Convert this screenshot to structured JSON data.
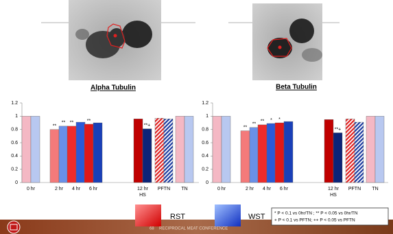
{
  "chart_data": [
    {
      "type": "bar",
      "title": "Alpha Tubulin",
      "categories": [
        "0 hr",
        "2 hr",
        "4 hr",
        "6 hr",
        "12 hr",
        "PFTN",
        "TN"
      ],
      "x_sublabels": [
        null,
        null,
        null,
        null,
        "HS",
        null,
        null
      ],
      "hatched": [
        false,
        false,
        false,
        false,
        false,
        true,
        false
      ],
      "ylim": [
        0,
        1.2
      ],
      "yticks": [
        0,
        0.2,
        0.4,
        0.6,
        0.8,
        1,
        1.2
      ],
      "series": [
        {
          "name": "RST",
          "color": "#e02020",
          "colors": [
            "#f4b8c4",
            "#f47a7a",
            "#ee2b2b",
            "#e01818",
            "#c00000",
            "#e02020",
            "#f4b8c4"
          ],
          "values": [
            1,
            0.8,
            0.85,
            0.88,
            0.96,
            0.97,
            1
          ],
          "markers": [
            null,
            "**",
            "**",
            "**",
            null,
            null,
            null
          ]
        },
        {
          "name": "WST",
          "color": "#1a48c8",
          "colors": [
            "#b8c8f0",
            "#6a90e8",
            "#2a5ad8",
            "#1a40b8",
            "#0c2478",
            "#1a3aa0",
            "#b8c8f0"
          ],
          "values": [
            1,
            0.85,
            0.91,
            0.9,
            0.81,
            0.96,
            1
          ],
          "markers": [
            null,
            "**",
            null,
            null,
            "**+",
            null,
            null
          ]
        }
      ]
    },
    {
      "type": "bar",
      "title": "Beta Tubulin",
      "categories": [
        "0 hr",
        "2 hr",
        "4 hr",
        "6 hr",
        "12 hr",
        "PFTN",
        "TN"
      ],
      "x_sublabels": [
        null,
        null,
        null,
        null,
        "HS",
        null,
        null
      ],
      "hatched": [
        false,
        false,
        false,
        false,
        false,
        true,
        false
      ],
      "ylim": [
        0,
        1.2
      ],
      "yticks": [
        0,
        0.2,
        0.4,
        0.6,
        0.8,
        1,
        1.2
      ],
      "series": [
        {
          "name": "RST",
          "color": "#e02020",
          "colors": [
            "#f4b8c4",
            "#f47a7a",
            "#ee2b2b",
            "#e01818",
            "#c00000",
            "#e02020",
            "#f4b8c4"
          ],
          "values": [
            1,
            0.78,
            0.87,
            0.9,
            0.95,
            0.96,
            1
          ],
          "markers": [
            null,
            "**",
            "**",
            "*",
            null,
            null,
            null
          ]
        },
        {
          "name": "WST",
          "color": "#1a48c8",
          "colors": [
            "#b8c8f0",
            "#6a90e8",
            "#2a5ad8",
            "#1a40b8",
            "#0c2478",
            "#1a3aa0",
            "#b8c8f0"
          ],
          "values": [
            1,
            0.83,
            0.89,
            0.92,
            0.75,
            0.91,
            1
          ],
          "markers": [
            null,
            "**",
            "*",
            null,
            "**+",
            null,
            null
          ]
        }
      ]
    }
  ],
  "footnote": [
    "* P < 0.1 vs 0hr/TN ; ** P < 0.05 vs 0hr/TN",
    "+ P < 0.1 vs PFTN;  ++ P < 0.05 vs PFTN"
  ],
  "footer": {
    "page": "68",
    "text": "RECIPROCAL MEAT CONFERENCE"
  }
}
